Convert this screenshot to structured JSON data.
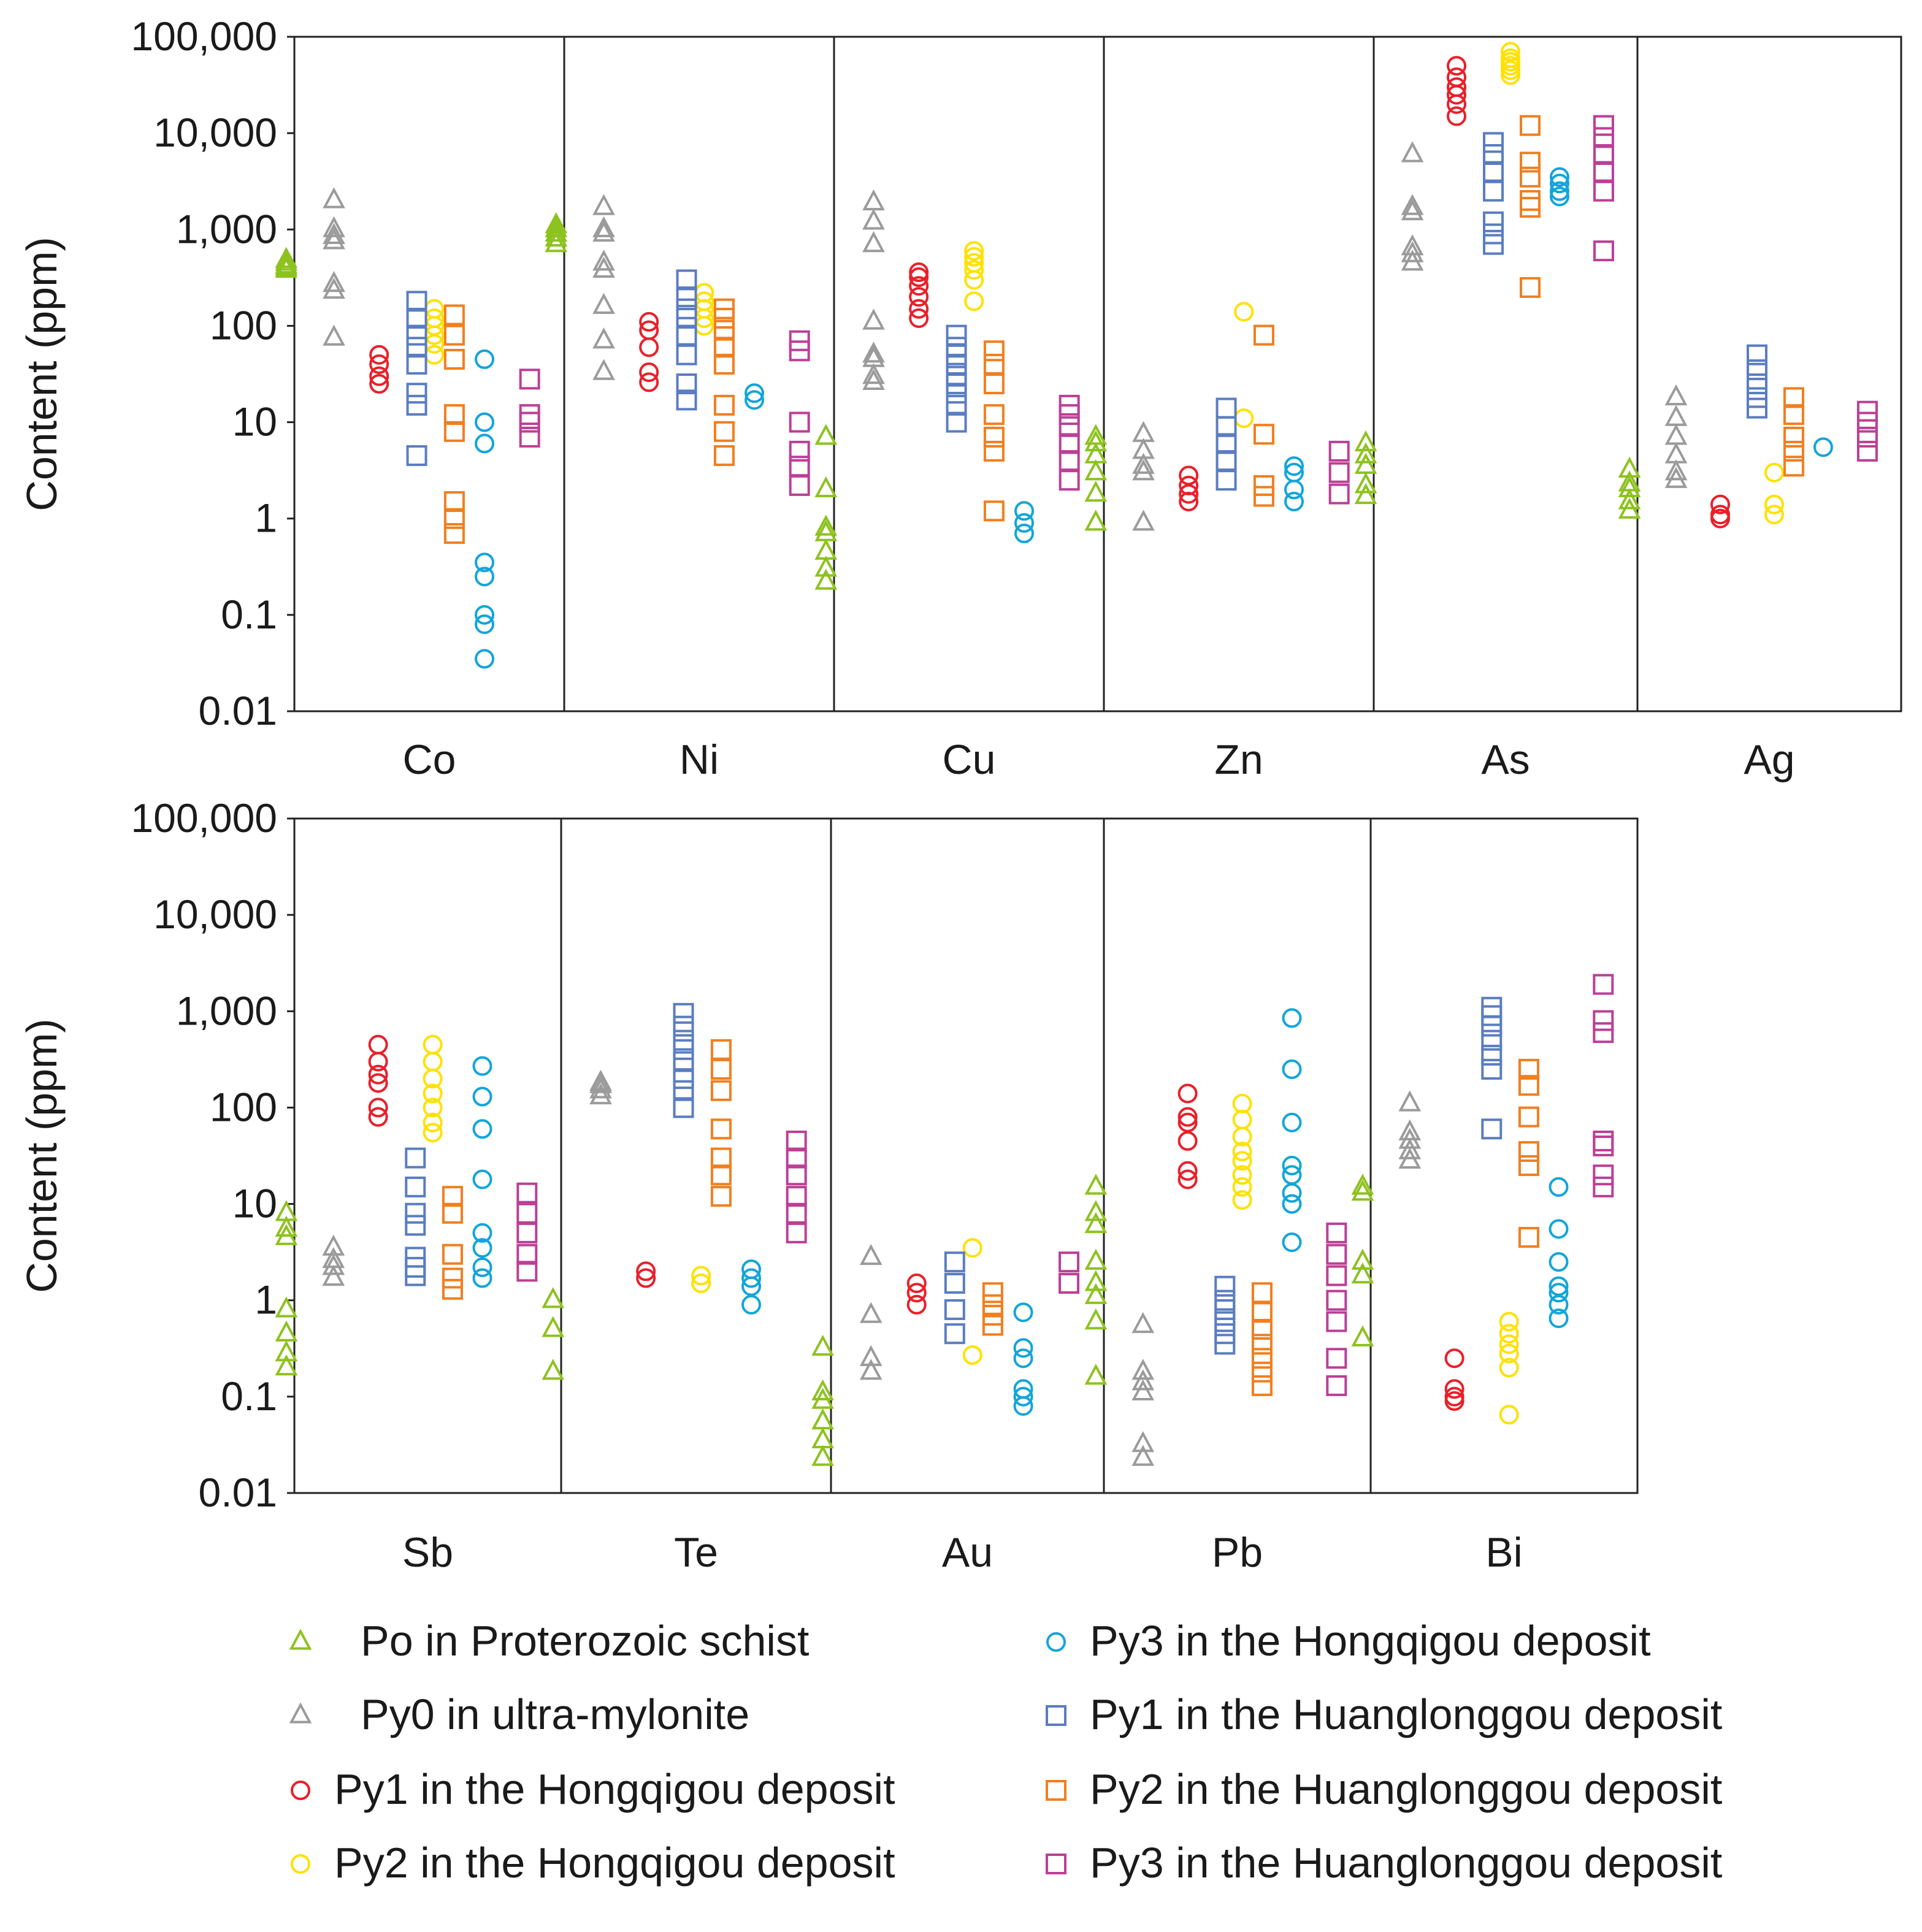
{
  "chart_data": {
    "type": "scatter",
    "y_scale": "log",
    "ylim": [
      0.01,
      100000
    ],
    "y_ticks": [
      0.01,
      0.1,
      1,
      10,
      100,
      1000,
      10000,
      100000
    ],
    "y_tick_labels": [
      "0.01",
      "0.1",
      "1",
      "10",
      "100",
      "1,000",
      "10,000",
      "100,000"
    ],
    "ylabel": "Content (ppm)",
    "panels": [
      {
        "elements": [
          "Co",
          "Ni",
          "Cu",
          "Zn",
          "As",
          "Ag"
        ]
      },
      {
        "elements": [
          "Sb",
          "Te",
          "Au",
          "Pb",
          "Bi"
        ]
      }
    ],
    "series": [
      {
        "name": "Po in Proterozoic schist",
        "marker": "triangle",
        "color": "#8dc21f",
        "values": {
          "Co": [
            380,
            400,
            420,
            450,
            480
          ],
          "Ni": [
            700,
            800,
            900,
            1000,
            1100
          ],
          "Cu": [
            0.22,
            0.3,
            0.45,
            0.7,
            0.8,
            2,
            7
          ],
          "Zn": [
            0.9,
            1.8,
            3,
            4.5,
            6,
            7
          ],
          "As": [
            1.7,
            2.2,
            3.5,
            4.5,
            6
          ],
          "Ag": [
            1.2,
            1.5,
            2,
            2.3,
            3.2
          ],
          "Sb": [
            0.2,
            0.28,
            0.45,
            0.8,
            4.5,
            5.5,
            8
          ],
          "Te": [
            0.18,
            0.5,
            1
          ],
          "Au": [
            0.023,
            0.035,
            0.055,
            0.09,
            0.11,
            0.32
          ],
          "Pb": [
            0.16,
            0.6,
            1.1,
            1.5,
            2.5,
            6,
            8,
            15
          ],
          "Bi": [
            0.4,
            1.8,
            2.5,
            13,
            15
          ]
        }
      },
      {
        "name": "Py0 in ultra-mylonite",
        "marker": "triangle",
        "color": "#9b9b9b",
        "values": {
          "Co": [
            75,
            230,
            270,
            750,
            850,
            1000,
            2000
          ],
          "Ni": [
            33,
            70,
            160,
            380,
            450,
            900,
            1000,
            1700
          ],
          "Cu": [
            26,
            30,
            45,
            50,
            110,
            700,
            1200,
            1900
          ],
          "Zn": [
            0.9,
            3,
            3.5,
            5,
            7.5
          ],
          "As": [
            450,
            550,
            650,
            1500,
            1700,
            6000
          ],
          "Ag": [
            2.5,
            3,
            4.5,
            7,
            11,
            18
          ],
          "Sb": [
            1.7,
            2.2,
            2.6,
            3.5
          ],
          "Te": [
            130,
            150,
            170,
            180
          ],
          "Au": [
            0.18,
            0.25,
            0.7,
            2.8
          ],
          "Pb": [
            0.023,
            0.032,
            0.11,
            0.14,
            0.18,
            0.55
          ],
          "Bi": [
            28,
            35,
            45,
            55,
            110
          ]
        }
      },
      {
        "name": "Py1 in the Hongqigou deposit",
        "marker": "circle",
        "color": "#e8202a",
        "values": {
          "Co": [
            25,
            30,
            40,
            50
          ],
          "Ni": [
            26,
            33,
            60,
            90,
            110
          ],
          "Cu": [
            120,
            150,
            200,
            260,
            320,
            360
          ],
          "Zn": [
            1.5,
            1.8,
            2.2,
            2.8
          ],
          "As": [
            15000,
            20000,
            25000,
            30000,
            38000,
            50000
          ],
          "Ag": [
            1,
            1.1,
            1.4
          ],
          "Sb": [
            80,
            100,
            180,
            220,
            300,
            450
          ],
          "Te": [
            1.7,
            2
          ],
          "Au": [
            0.9,
            1.2,
            1.5
          ],
          "Pb": [
            18,
            22,
            45,
            70,
            80,
            140
          ],
          "Bi": [
            0.09,
            0.1,
            0.12,
            0.25
          ]
        }
      },
      {
        "name": "Py2 in the Hongqigou deposit",
        "marker": "circle",
        "color": "#ffe100",
        "values": {
          "Co": [
            50,
            65,
            80,
            100,
            120,
            150
          ],
          "Ni": [
            100,
            120,
            150,
            180,
            220
          ],
          "Cu": [
            180,
            300,
            380,
            450,
            520,
            600
          ],
          "Zn": [
            11,
            140
          ],
          "As": [
            40000,
            45000,
            50000,
            55000,
            60000,
            70000
          ],
          "Ag": [
            1.1,
            1.4,
            3
          ],
          "Sb": [
            55,
            70,
            100,
            140,
            200,
            300,
            450
          ],
          "Te": [
            1.5,
            1.8
          ],
          "Au": [
            0.27,
            3.5
          ],
          "Pb": [
            11,
            15,
            20,
            28,
            35,
            50,
            75,
            110
          ],
          "Bi": [
            0.065,
            0.2,
            0.28,
            0.35,
            0.45,
            0.6
          ]
        }
      },
      {
        "name": "Py3 in the Hongqigou deposit",
        "marker": "circle",
        "color": "#12a5da",
        "values": {
          "Co": [
            0.035,
            0.08,
            0.1,
            0.25,
            0.35,
            6,
            10,
            45
          ],
          "Ni": [
            17,
            20
          ],
          "Cu": [
            0.7,
            0.9,
            1.2
          ],
          "Zn": [
            1.5,
            2,
            3,
            3.5
          ],
          "As": [
            2200,
            2500,
            3000,
            3500
          ],
          "Ag": [
            5.5
          ],
          "Sb": [
            1.7,
            2.2,
            3.5,
            5,
            18,
            60,
            130,
            270
          ],
          "Te": [
            0.9,
            1.4,
            1.7,
            2.1
          ],
          "Au": [
            0.08,
            0.1,
            0.12,
            0.25,
            0.32,
            0.75
          ],
          "Pb": [
            4,
            10,
            13,
            20,
            25,
            70,
            250,
            850
          ],
          "Bi": [
            0.65,
            0.9,
            1.2,
            1.4,
            2.5,
            5.5,
            15
          ]
        }
      },
      {
        "name": "Py1 in the Huanglonggou deposit",
        "marker": "square",
        "color": "#5a7dc2",
        "values": {
          "Co": [
            4.5,
            15,
            20,
            40,
            60,
            80,
            120,
            180
          ],
          "Ni": [
            17,
            25,
            50,
            80,
            120,
            150,
            200,
            300
          ],
          "Cu": [
            10,
            15,
            20,
            25,
            30,
            40,
            50,
            60,
            80
          ],
          "Zn": [
            2.5,
            4,
            6,
            9,
            14
          ],
          "As": [
            700,
            900,
            1200,
            2500,
            4000,
            6000,
            8000
          ],
          "Ag": [
            14,
            18,
            25,
            35,
            50
          ],
          "Sb": [
            1.8,
            2.2,
            2.8,
            6,
            8,
            15,
            30
          ],
          "Te": [
            100,
            150,
            200,
            300,
            400,
            500,
            700,
            950
          ],
          "Au": [
            0.45,
            0.8,
            1.5,
            2.5
          ],
          "Pb": [
            0.35,
            0.45,
            0.6,
            0.8,
            1,
            1.4
          ],
          "Bi": [
            60,
            250,
            350,
            500,
            700,
            900,
            1100
          ]
        }
      },
      {
        "name": "Py2 in the Huanglonggou deposit",
        "marker": "square",
        "color": "#f17f1f",
        "values": {
          "Co": [
            0.7,
            1,
            1.5,
            8,
            12,
            45,
            80,
            130
          ],
          "Ni": [
            4.5,
            8,
            15,
            40,
            60,
            90,
            120,
            150
          ],
          "Cu": [
            1.2,
            5,
            7,
            12,
            25,
            40,
            55
          ],
          "Zn": [
            1.7,
            2.2,
            7.5,
            80
          ],
          "As": [
            250,
            1700,
            2000,
            3500,
            5000,
            12000
          ],
          "Ag": [
            3.5,
            5,
            7,
            12,
            18
          ],
          "Sb": [
            1.3,
            1.7,
            3,
            8,
            12
          ],
          "Te": [
            12,
            20,
            30,
            60,
            150,
            250,
            400
          ],
          "Au": [
            0.55,
            0.7,
            0.9,
            1.2
          ],
          "Pb": [
            0.13,
            0.18,
            0.25,
            0.35,
            0.5,
            0.75,
            1.2
          ],
          "Bi": [
            4.5,
            25,
            35,
            80,
            170,
            250
          ]
        }
      },
      {
        "name": "Py3 in the Huanglonggou deposit",
        "marker": "square",
        "color": "#bc3f96",
        "values": {
          "Co": [
            7,
            10,
            12,
            28
          ],
          "Ni": [
            2.2,
            3.5,
            5,
            10,
            55,
            70
          ],
          "Cu": [
            2.5,
            4,
            6,
            9,
            12,
            15
          ],
          "Zn": [
            1.8,
            3,
            5
          ],
          "As": [
            600,
            2500,
            4000,
            6000,
            9000,
            12000
          ],
          "Ag": [
            5,
            7,
            10,
            13
          ],
          "Sb": [
            2,
            3,
            5,
            8,
            13
          ],
          "Te": [
            5,
            8,
            12,
            20,
            30,
            45
          ],
          "Au": [
            1.5,
            2.5
          ],
          "Pb": [
            0.13,
            0.25,
            0.6,
            1,
            1.8,
            3,
            5
          ],
          "Bi": [
            15,
            20,
            40,
            45,
            600,
            800,
            1900
          ]
        }
      }
    ]
  }
}
